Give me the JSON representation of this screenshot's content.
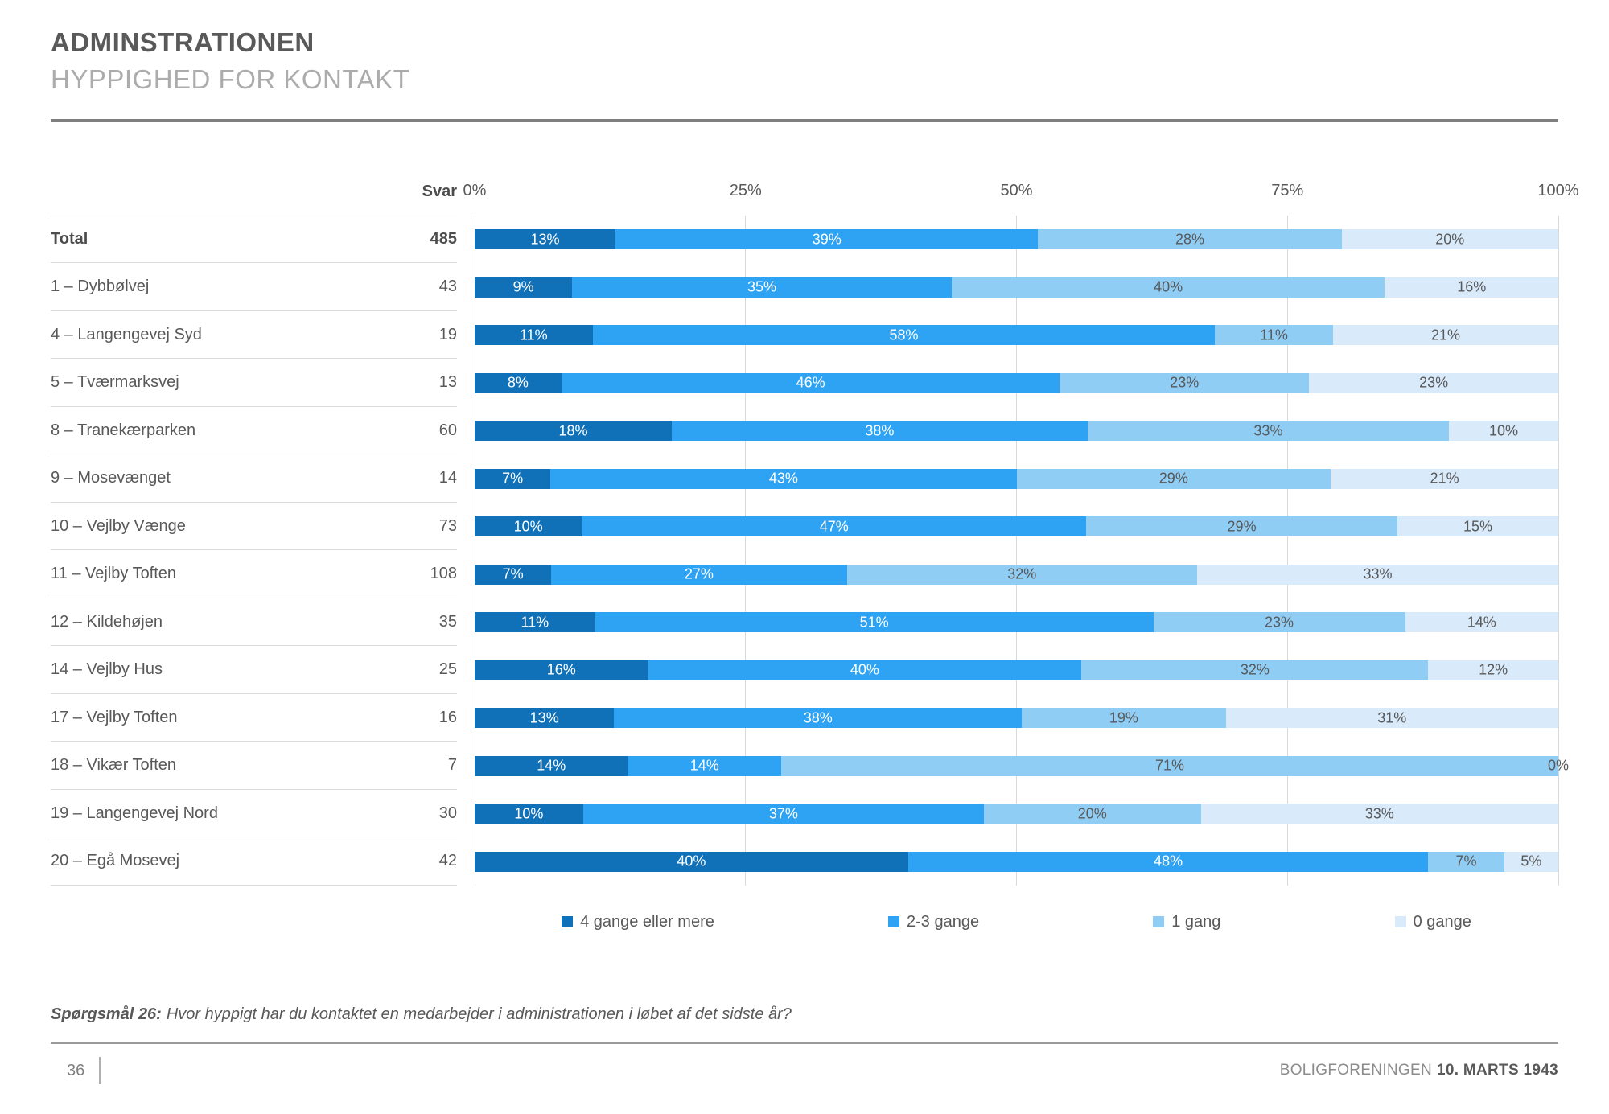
{
  "header": {
    "title": "ADMINSTRATIONEN",
    "subtitle": "HYPPIGHED FOR KONTAKT"
  },
  "chart_data": {
    "type": "bar",
    "stacked": true,
    "orientation": "horizontal",
    "xlim": [
      0,
      100
    ],
    "grid": true,
    "svar_header": "Svar",
    "axis_ticks": [
      "0%",
      "25%",
      "50%",
      "75%",
      "100%"
    ],
    "series_names": [
      "4 gange eller mere",
      "2-3 gange",
      "1 gang",
      "0 gange"
    ],
    "colors": [
      "#1071B8",
      "#2EA3F4",
      "#8FCDF5",
      "#D9EAFB"
    ],
    "label_colors": [
      "#FFFFFF",
      "#FFFFFF",
      "#595959",
      "#595959"
    ],
    "rows": [
      {
        "label": "Total",
        "svar": "485",
        "values": [
          13,
          39,
          28,
          20
        ],
        "bold": true
      },
      {
        "label": "1 – Dybbølvej",
        "svar": "43",
        "values": [
          9,
          35,
          40,
          16
        ]
      },
      {
        "label": "4 – Langengevej Syd",
        "svar": "19",
        "values": [
          11,
          58,
          11,
          21
        ]
      },
      {
        "label": "5 – Tværmarksvej",
        "svar": "13",
        "values": [
          8,
          46,
          23,
          23
        ]
      },
      {
        "label": "8 – Tranekærparken",
        "svar": "60",
        "values": [
          18,
          38,
          33,
          10
        ]
      },
      {
        "label": "9 – Mosevænget",
        "svar": "14",
        "values": [
          7,
          43,
          29,
          21
        ]
      },
      {
        "label": "10 – Vejlby Vænge",
        "svar": "73",
        "values": [
          10,
          47,
          29,
          15
        ]
      },
      {
        "label": "11 – Vejlby Toften",
        "svar": "108",
        "values": [
          7,
          27,
          32,
          33
        ]
      },
      {
        "label": "12 – Kildehøjen",
        "svar": "35",
        "values": [
          11,
          51,
          23,
          14
        ]
      },
      {
        "label": "14 – Vejlby Hus",
        "svar": "25",
        "values": [
          16,
          40,
          32,
          12
        ]
      },
      {
        "label": "17 – Vejlby Toften",
        "svar": "16",
        "values": [
          13,
          38,
          19,
          31
        ]
      },
      {
        "label": "18 – Vikær Toften",
        "svar": "7",
        "values": [
          14,
          14,
          71,
          0
        ]
      },
      {
        "label": "19 – Langengevej Nord",
        "svar": "30",
        "values": [
          10,
          37,
          20,
          33
        ]
      },
      {
        "label": "20 – Egå Mosevej",
        "svar": "42",
        "values": [
          40,
          48,
          7,
          5
        ]
      }
    ],
    "legend_position": "bottom"
  },
  "footnote": {
    "prefix": "Spørgsmål 26:",
    "text": "Hvor hyppigt har du kontaktet en medarbejder i administrationen i løbet af det sidste år?"
  },
  "footer": {
    "page": "36",
    "org": "BOLIGFORENINGEN",
    "date": "10. MARTS 1943"
  }
}
